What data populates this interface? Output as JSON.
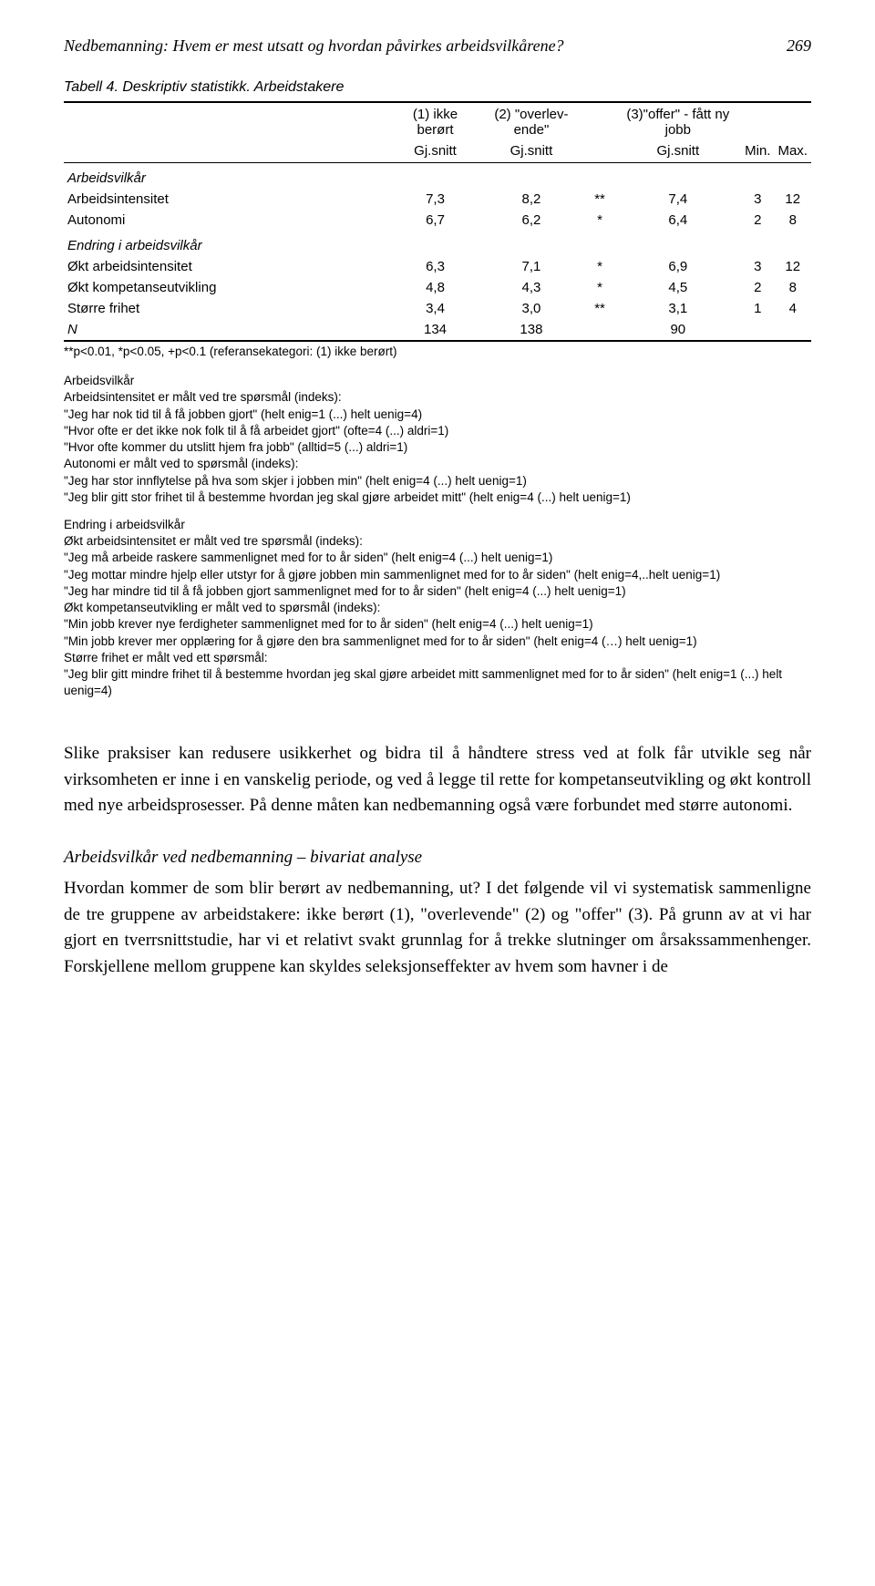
{
  "running_head": {
    "title": "Nedbemanning: Hvem er mest utsatt og hvordan påvirkes arbeidsvilkårene?",
    "page_no": "269"
  },
  "table": {
    "caption": "Tabell 4. Deskriptiv statistikk. Arbeidstakere",
    "header": {
      "col1_top": "(1) ikke berørt",
      "col2_top": "(2) \"overlev-ende\"",
      "col3_top": "(3)\"offer\" - fått ny jobb",
      "col1_bot": "Gj.snitt",
      "col2_bot": "Gj.snitt",
      "col3_bot": "Gj.snitt",
      "min": "Min.",
      "max": "Max."
    },
    "section1": "Arbeidsvilkår",
    "rows": [
      {
        "label": "Arbeidsintensitet",
        "c1": "7,3",
        "c2": "8,2",
        "sig": "**",
        "c3": "7,4",
        "min": "3",
        "max": "12"
      },
      {
        "label": "Autonomi",
        "c1": "6,7",
        "c2": "6,2",
        "sig": "*",
        "c3": "6,4",
        "min": "2",
        "max": "8"
      }
    ],
    "section2": "Endring i arbeidsvilkår",
    "rows2": [
      {
        "label": "Økt arbeidsintensitet",
        "c1": "6,3",
        "c2": "7,1",
        "sig": "*",
        "c3": "6,9",
        "min": "3",
        "max": "12"
      },
      {
        "label": "Økt kompetanseutvikling",
        "c1": "4,8",
        "c2": "4,3",
        "sig": "*",
        "c3": "4,5",
        "min": "2",
        "max": "8"
      },
      {
        "label": "Større frihet",
        "c1": "3,4",
        "c2": "3,0",
        "sig": "**",
        "c3": "3,1",
        "min": "1",
        "max": "4"
      }
    ],
    "nrow": {
      "label": "N",
      "c1": "134",
      "c2": "138",
      "c3": "90"
    },
    "sig_legend": "**p<0.01, *p<0.05, +p<0.1 (referansekategori: (1) ikke berørt)"
  },
  "footnotes": {
    "block1_title": "Arbeidsvilkår",
    "block1": "Arbeidsintensitet er målt ved tre spørsmål (indeks):\n\"Jeg har nok tid til å få jobben gjort\" (helt enig=1 (...) helt uenig=4)\n\"Hvor ofte er det ikke nok folk til å få arbeidet gjort\" (ofte=4 (...) aldri=1)\n\"Hvor ofte kommer du utslitt hjem fra jobb\" (alltid=5 (...) aldri=1)\nAutonomi er målt ved to spørsmål (indeks):\n\"Jeg har stor innflytelse på hva som skjer i jobben min\" (helt enig=4 (...) helt uenig=1)\n\"Jeg blir gitt stor frihet til å bestemme hvordan jeg skal gjøre arbeidet mitt\" (helt enig=4 (...) helt uenig=1)",
    "block2_title": "Endring i arbeidsvilkår",
    "block2": "Økt arbeidsintensitet er målt ved tre spørsmål (indeks):\n\"Jeg må arbeide raskere sammenlignet med for to år siden\" (helt enig=4 (...) helt uenig=1)\n\"Jeg mottar mindre hjelp eller utstyr for å gjøre jobben min sammenlignet med for to år siden\" (helt enig=4,..helt uenig=1)\n\"Jeg har mindre tid til å få jobben gjort sammenlignet med for to år siden\" (helt enig=4 (...) helt uenig=1)\nØkt kompetanseutvikling er målt ved to spørsmål (indeks):\n\"Min jobb krever nye ferdigheter sammenlignet med for to år siden\" (helt enig=4 (...) helt uenig=1)\n\"Min jobb krever mer opplæring for å gjøre den bra sammenlignet med for to år siden\" (helt enig=4 (…) helt uenig=1)\nStørre frihet er målt ved ett spørsmål:\n\"Jeg blir gitt mindre frihet til å bestemme hvordan jeg skal gjøre arbeidet mitt sammenlignet med for to år siden\" (helt enig=1 (...) helt uenig=4)"
  },
  "body": {
    "para1": "Slike praksiser kan redusere usikkerhet og bidra til å håndtere stress ved at folk får utvikle seg når virksomheten er inne i en vanskelig periode, og ved å legge til rette for kompetanseutvikling og økt kontroll med nye arbeidsprosesser. På denne måten kan nedbemanning også være forbundet med større autonomi.",
    "heading": "Arbeidsvilkår ved nedbemanning – bivariat analyse",
    "para2": "Hvordan kommer de som blir berørt av nedbemanning, ut? I det følgende vil vi systematisk sammenligne de tre gruppene av arbeidstakere: ikke berørt (1), \"overlevende\" (2) og \"offer\" (3). På grunn av at vi har gjort en tverrsnittstudie, har vi et relativt svakt grunnlag for å trekke slutninger om årsakssammenhenger. Forskjellene mellom gruppene kan skyldes seleksjonseffekter av hvem som havner i de"
  },
  "colors": {
    "text": "#000000",
    "background": "#ffffff",
    "border": "#000000"
  },
  "fonts": {
    "serif": "Times New Roman",
    "sans": "Arial",
    "body_size_pt": 14,
    "table_size_pt": 11.5,
    "footnote_size_pt": 10
  }
}
